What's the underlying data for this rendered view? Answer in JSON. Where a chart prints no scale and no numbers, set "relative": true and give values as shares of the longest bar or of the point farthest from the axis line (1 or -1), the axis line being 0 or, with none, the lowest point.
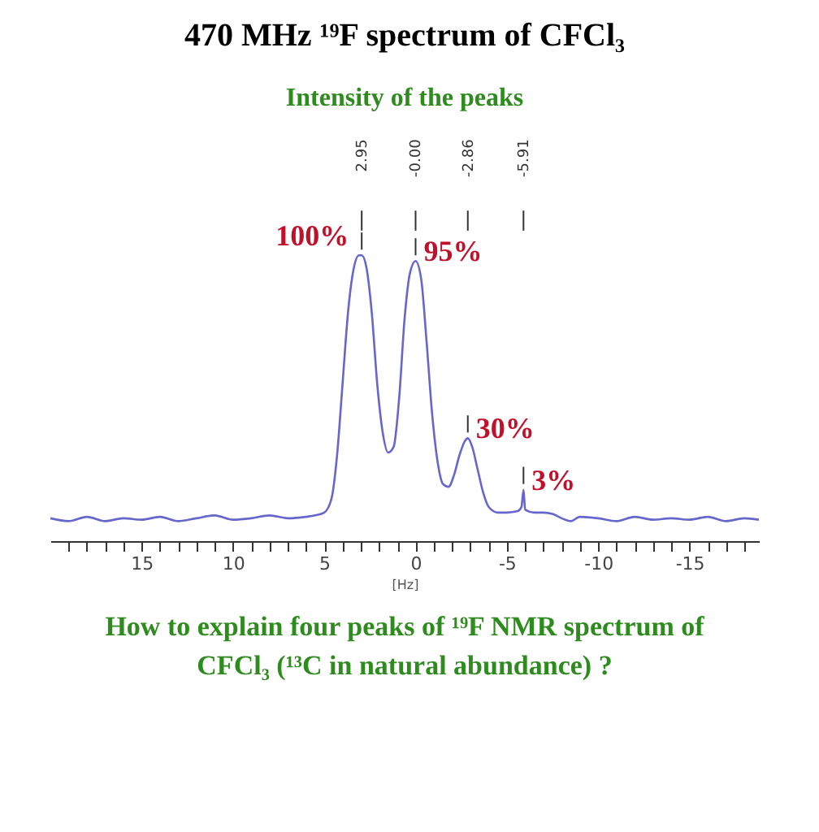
{
  "chart_data": {
    "type": "line",
    "title": "470 MHz ¹⁹F spectrum of CFCl₃",
    "subtitle": "Intensity of the peaks",
    "xlabel": "[Hz]",
    "relative": true,
    "grid": false,
    "legend": false,
    "marker": "none",
    "line_style": "solid",
    "xlim": [
      20,
      -18.8
    ],
    "xticks": [
      {
        "value": 19,
        "label": null
      },
      {
        "value": 18,
        "label": null
      },
      {
        "value": 17,
        "label": null
      },
      {
        "value": 16,
        "label": null
      },
      15,
      {
        "value": 14,
        "label": null
      },
      {
        "value": 13,
        "label": null
      },
      {
        "value": 12,
        "label": null
      },
      {
        "value": 11,
        "label": null
      },
      10,
      {
        "value": 9,
        "label": null
      },
      {
        "value": 8,
        "label": null
      },
      {
        "value": 7,
        "label": null
      },
      {
        "value": 6,
        "label": null
      },
      5,
      {
        "value": 4,
        "label": null
      },
      {
        "value": 3,
        "label": null
      },
      {
        "value": 2,
        "label": null
      },
      {
        "value": 1,
        "label": null
      },
      0,
      {
        "value": -1,
        "label": null
      },
      {
        "value": -2,
        "label": null
      },
      {
        "value": -3,
        "label": null
      },
      {
        "value": -4,
        "label": null
      },
      -5,
      {
        "value": -6,
        "label": null
      },
      {
        "value": -7,
        "label": null
      },
      {
        "value": -8,
        "label": null
      },
      {
        "value": -9,
        "label": null
      },
      -10,
      {
        "value": -11,
        "label": null
      },
      {
        "value": -12,
        "label": null
      },
      {
        "value": -13,
        "label": null
      },
      {
        "value": -14,
        "label": null
      },
      -15,
      {
        "value": -16,
        "label": null
      },
      {
        "value": -17,
        "label": null
      },
      {
        "value": -18,
        "label": null
      }
    ],
    "series": [
      {
        "color": "#6666cc",
        "x": [
          20,
          19,
          18,
          17,
          16,
          15,
          14,
          13,
          12,
          11,
          10,
          9,
          8,
          7,
          6,
          5.5,
          5,
          4.6,
          4.3,
          4,
          3.7,
          3.4,
          3.1,
          2.95,
          2.7,
          2.4,
          2.1,
          1.8,
          1.5,
          1.2,
          0.9,
          0.6,
          0.3,
          0.0,
          -0.3,
          -0.6,
          -0.9,
          -1.2,
          -1.5,
          -1.8,
          -2.1,
          -2.4,
          -2.7,
          -2.86,
          -3.1,
          -3.4,
          -3.7,
          -4.0,
          -4.5,
          -5.0,
          -5.6,
          -5.8,
          -5.91,
          -6.0,
          -6.5,
          -7,
          -7.5,
          -8,
          -8.5,
          -9,
          -10,
          -11,
          -12,
          -13,
          -14,
          -15,
          -16,
          -17,
          -18,
          -18.8
        ],
        "values": [
          0.08,
          0.07,
          0.085,
          0.07,
          0.08,
          0.075,
          0.085,
          0.07,
          0.08,
          0.09,
          0.075,
          0.08,
          0.09,
          0.08,
          0.085,
          0.09,
          0.1,
          0.15,
          0.3,
          0.55,
          0.8,
          0.95,
          1.0,
          1.0,
          0.96,
          0.8,
          0.55,
          0.38,
          0.31,
          0.33,
          0.5,
          0.78,
          0.94,
          0.98,
          0.92,
          0.7,
          0.45,
          0.28,
          0.2,
          0.19,
          0.23,
          0.3,
          0.35,
          0.36,
          0.33,
          0.25,
          0.17,
          0.12,
          0.1,
          0.1,
          0.105,
          0.12,
          0.18,
          0.11,
          0.1,
          0.1,
          0.095,
          0.08,
          0.07,
          0.085,
          0.08,
          0.07,
          0.085,
          0.075,
          0.08,
          0.075,
          0.085,
          0.07,
          0.08,
          0.075
        ]
      }
    ],
    "annotations": [
      {
        "text": "100%",
        "x": 2.95,
        "y": 1.0
      },
      {
        "text": "95%",
        "x": 0.0,
        "y": 0.98
      },
      {
        "text": "30%",
        "x": -2.86,
        "y": 0.36
      },
      {
        "text": "3%",
        "x": -5.91,
        "y": 0.18
      },
      "2.95",
      "-0.00",
      "-2.86",
      "-5.91",
      "How to explain four peaks of ¹⁹F NMR spectrum of CFCl₃ (¹³C in natural abundance) ?"
    ]
  }
}
